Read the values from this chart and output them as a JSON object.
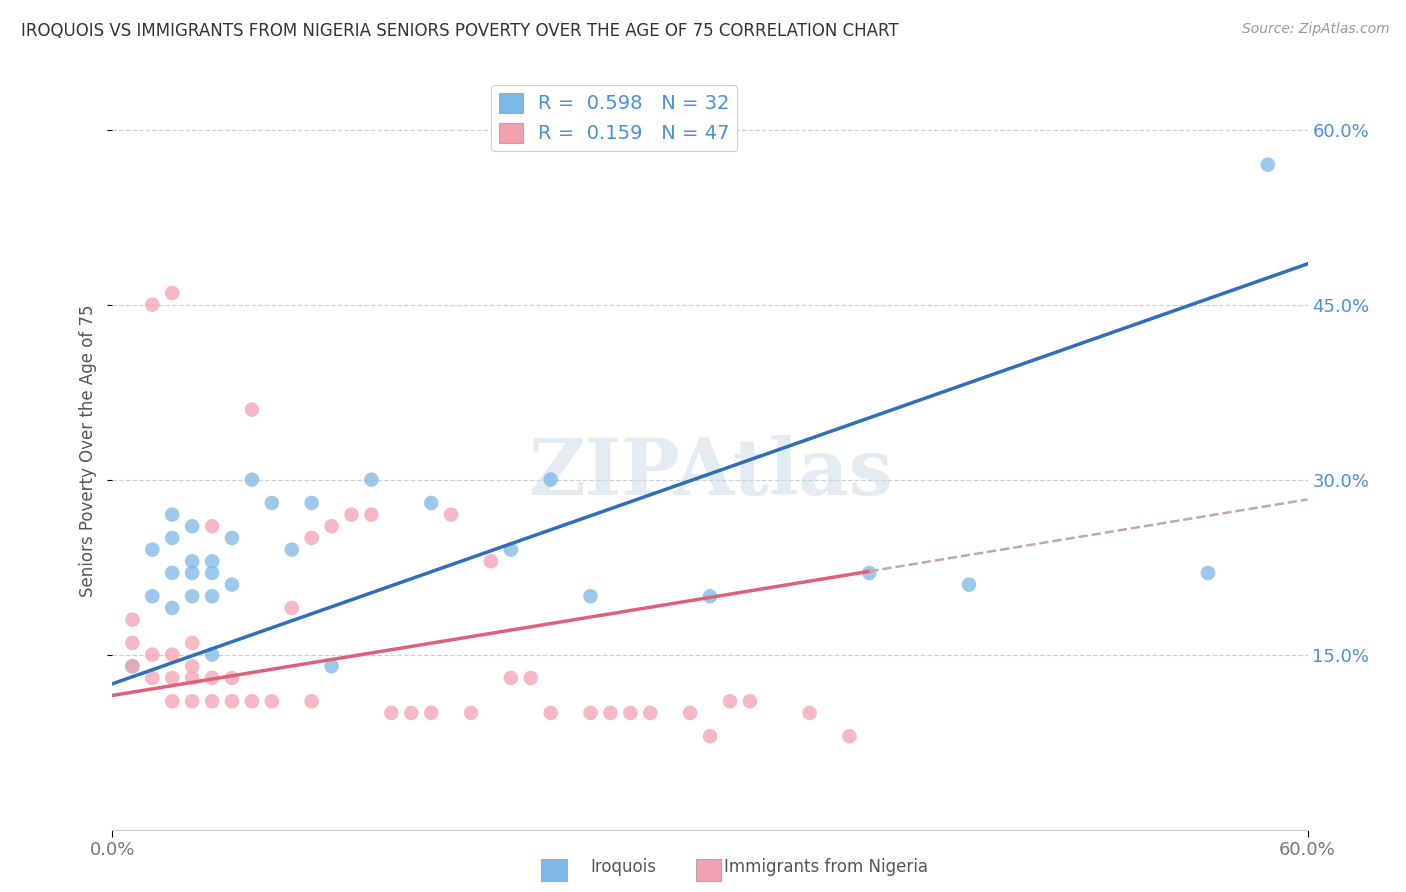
{
  "title": "IROQUOIS VS IMMIGRANTS FROM NIGERIA SENIORS POVERTY OVER THE AGE OF 75 CORRELATION CHART",
  "source": "Source: ZipAtlas.com",
  "ylabel": "Seniors Poverty Over the Age of 75",
  "xlim": [
    0.0,
    0.6
  ],
  "ylim": [
    0.0,
    0.65
  ],
  "ytick_labels_right": [
    "15.0%",
    "30.0%",
    "45.0%",
    "60.0%"
  ],
  "yticks_right": [
    0.15,
    0.3,
    0.45,
    0.6
  ],
  "legend_R": [
    "0.598",
    "0.159"
  ],
  "legend_N": [
    "32",
    "47"
  ],
  "blue_color": "#7db8e8",
  "pink_color": "#f4a0b0",
  "blue_line_color": "#2e6fba",
  "pink_line_color": "#e0607a",
  "dashed_line_color": "#c0a8b0",
  "grid_color": "#d0d0d0",
  "background_color": "#ffffff",
  "watermark": "ZIPAtlas",
  "blue_intercept": 0.125,
  "blue_slope": 0.6,
  "pink_intercept": 0.115,
  "pink_slope": 0.28,
  "iroquois_x": [
    0.01,
    0.02,
    0.02,
    0.03,
    0.03,
    0.03,
    0.03,
    0.04,
    0.04,
    0.04,
    0.04,
    0.05,
    0.05,
    0.05,
    0.05,
    0.06,
    0.06,
    0.07,
    0.08,
    0.09,
    0.1,
    0.11,
    0.13,
    0.16,
    0.2,
    0.22,
    0.24,
    0.3,
    0.38,
    0.43,
    0.55,
    0.58
  ],
  "iroquois_y": [
    0.14,
    0.2,
    0.24,
    0.19,
    0.22,
    0.25,
    0.27,
    0.2,
    0.22,
    0.23,
    0.26,
    0.2,
    0.22,
    0.23,
    0.15,
    0.21,
    0.25,
    0.3,
    0.28,
    0.24,
    0.28,
    0.14,
    0.3,
    0.28,
    0.24,
    0.3,
    0.2,
    0.2,
    0.22,
    0.21,
    0.22,
    0.57
  ],
  "nigeria_x": [
    0.01,
    0.01,
    0.01,
    0.02,
    0.02,
    0.02,
    0.03,
    0.03,
    0.03,
    0.03,
    0.04,
    0.04,
    0.04,
    0.04,
    0.05,
    0.05,
    0.05,
    0.06,
    0.06,
    0.07,
    0.07,
    0.08,
    0.09,
    0.1,
    0.1,
    0.11,
    0.12,
    0.13,
    0.14,
    0.15,
    0.16,
    0.17,
    0.18,
    0.19,
    0.2,
    0.21,
    0.22,
    0.24,
    0.25,
    0.26,
    0.27,
    0.29,
    0.3,
    0.31,
    0.32,
    0.35,
    0.37
  ],
  "nigeria_y": [
    0.14,
    0.16,
    0.18,
    0.13,
    0.15,
    0.45,
    0.11,
    0.13,
    0.15,
    0.46,
    0.11,
    0.13,
    0.14,
    0.16,
    0.11,
    0.13,
    0.26,
    0.11,
    0.13,
    0.11,
    0.36,
    0.11,
    0.19,
    0.11,
    0.25,
    0.26,
    0.27,
    0.27,
    0.1,
    0.1,
    0.1,
    0.27,
    0.1,
    0.23,
    0.13,
    0.13,
    0.1,
    0.1,
    0.1,
    0.1,
    0.1,
    0.1,
    0.08,
    0.11,
    0.11,
    0.1,
    0.08
  ]
}
